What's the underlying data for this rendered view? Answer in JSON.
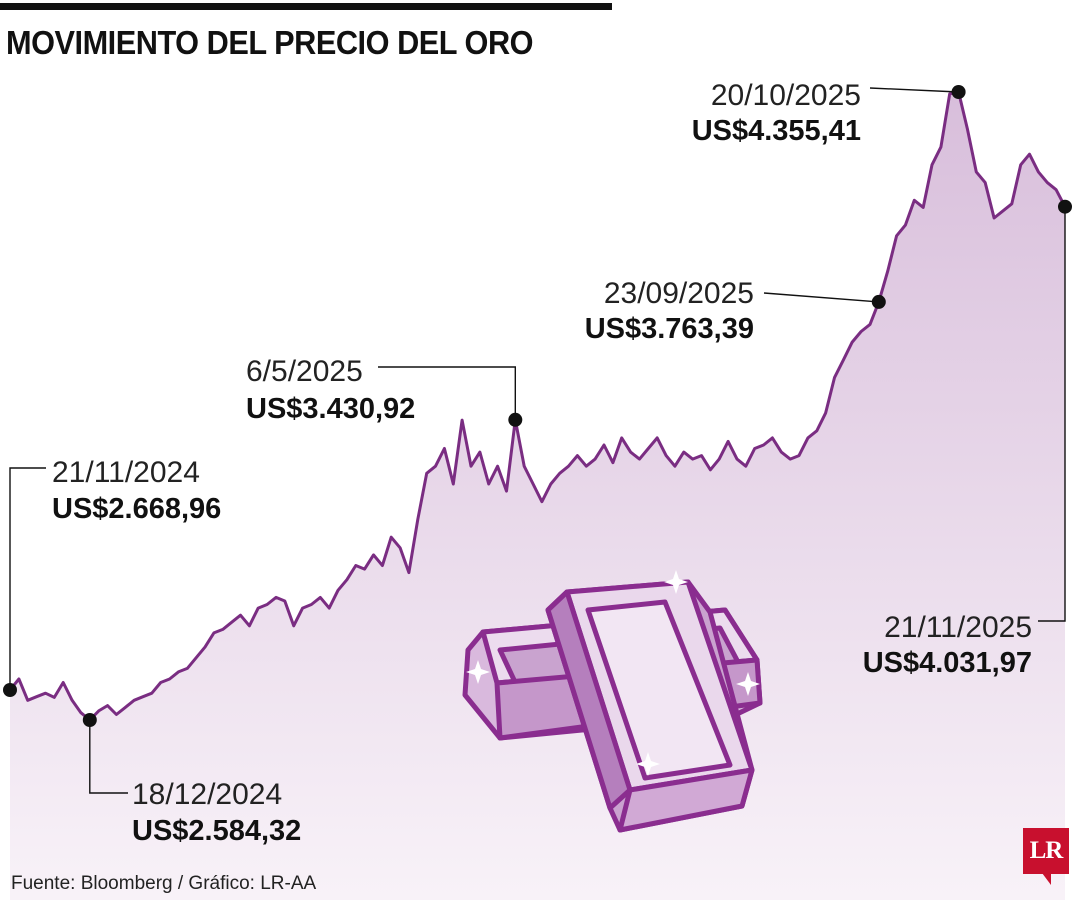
{
  "header": {
    "title": "MOVIMIENTO DEL PRECIO DEL ORO"
  },
  "footer": {
    "source": "Fuente: Bloomberg / Gráfico: LR-AA",
    "logo_text": "LR"
  },
  "colors": {
    "line": "#7a2d82",
    "area_top": "#d8bedb",
    "area_bottom": "#f7f0f7",
    "logo": "#c8102e",
    "gold_bar_fill": "#e2c9e5",
    "gold_bar_stroke": "#8a2d8f"
  },
  "illustration": "gold-bars-icon",
  "chart_data": {
    "type": "area",
    "title": "MOVIMIENTO DEL PRECIO DEL ORO",
    "xlabel": "",
    "ylabel": "",
    "x_range": [
      "21/11/2024",
      "21/11/2025"
    ],
    "ylim": [
      2400,
      4450
    ],
    "grid": false,
    "legend": "none",
    "series": [
      {
        "values": [
          2668.96,
          2700,
          2640,
          2650,
          2660,
          2648,
          2690,
          2640,
          2605,
          2584.32,
          2610,
          2625,
          2600,
          2620,
          2640,
          2650,
          2660,
          2690,
          2700,
          2720,
          2730,
          2760,
          2790,
          2830,
          2840,
          2860,
          2880,
          2850,
          2900,
          2910,
          2930,
          2920,
          2850,
          2900,
          2910,
          2930,
          2900,
          2950,
          2980,
          3020,
          3010,
          3050,
          3020,
          3100,
          3070,
          3000,
          3150,
          3280,
          3300,
          3350,
          3250,
          3430,
          3300,
          3340,
          3250,
          3300,
          3230,
          3430.92,
          3300,
          3250,
          3200,
          3250,
          3280,
          3300,
          3330,
          3300,
          3320,
          3360,
          3310,
          3380,
          3340,
          3320,
          3350,
          3380,
          3330,
          3300,
          3340,
          3320,
          3330,
          3290,
          3320,
          3370,
          3320,
          3300,
          3350,
          3360,
          3380,
          3340,
          3320,
          3330,
          3380,
          3400,
          3450,
          3550,
          3600,
          3650,
          3680,
          3700,
          3763.39,
          3850,
          3950,
          3980,
          4050,
          4030,
          4150,
          4200,
          4350,
          4355.41,
          4250,
          4130,
          4100,
          4000,
          4020,
          4040,
          4150,
          4180,
          4130,
          4100,
          4080,
          4031.97
        ]
      }
    ],
    "annotations": [
      {
        "date": "21/11/2024",
        "label": "US$2.668,96",
        "index": 0
      },
      {
        "date": "18/12/2024",
        "label": "US$2.584,32",
        "index": 9
      },
      {
        "date": "6/5/2025",
        "label": "US$3.430,92",
        "index": 57
      },
      {
        "date": "23/09/2025",
        "label": "US$3.763,39",
        "index": 98
      },
      {
        "date": "20/10/2025",
        "label": "US$4.355,41",
        "index": 107
      },
      {
        "date": "21/11/2025",
        "label": "US$4.031,97",
        "index": 119
      }
    ]
  }
}
